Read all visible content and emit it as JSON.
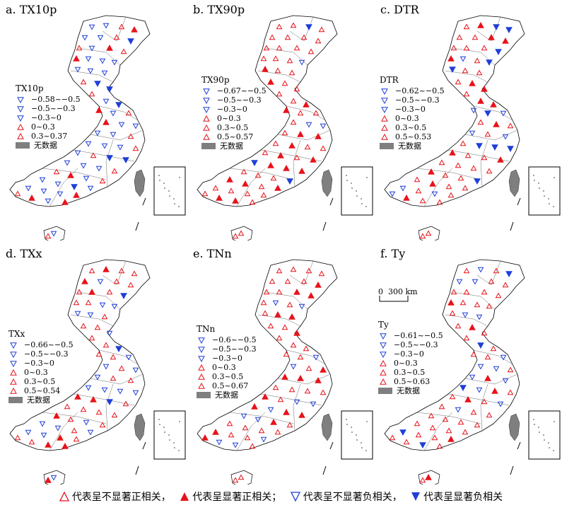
{
  "panels": [
    {
      "title": "a. TX10p",
      "legend_title": "TX10p",
      "ranges": [
        "−0.58~−0.5",
        "−0.5~−0.3",
        "−0.3~0",
        "0~0.3",
        "0.3~0.37"
      ]
    },
    {
      "title": "b. TX90p",
      "legend_title": "TX90p",
      "ranges": [
        "−0.67~−0.5",
        "−0.5~−0.3",
        "−0.3~0",
        "0~0.3",
        "0.3~0.5",
        "0.5~0.57"
      ]
    },
    {
      "title": "c. DTR",
      "legend_title": "DTR",
      "ranges": [
        "−0.62~−0.5",
        "−0.5~−0.3",
        "−0.3~0",
        "0~0.3",
        "0.3~0.5",
        "0.5~0.53"
      ]
    },
    {
      "title": "d. TXx",
      "legend_title": "TXx",
      "ranges": [
        "−0.66~−0.5",
        "−0.5~−0.3",
        "−0.3~0",
        "0~0.3",
        "0.3~0.5",
        "0.5~0.54"
      ]
    },
    {
      "title": "e. TNn",
      "legend_title": "TNn",
      "ranges": [
        "−0.6~−0.5",
        "−0.5~−0.3",
        "−0.3~0",
        "0~0.3",
        "0.3~0.5",
        "0.5~0.67"
      ]
    },
    {
      "title": "f. Ty",
      "legend_title": "Ty",
      "ranges": [
        "−0.61~−0.5",
        "−0.5~−0.3",
        "−0.3~0",
        "0~0.3",
        "0.3~0.5",
        "0.5~0.63"
      ]
    }
  ],
  "nodata_label": "无数据",
  "scale": {
    "zero": "0",
    "label": "300 km"
  },
  "footer": {
    "pos_insig": "代表呈不显著正相关，",
    "pos_sig": "代表呈显著正相关；",
    "neg_insig": "代表呈不显著负相关，",
    "neg_sig": "代表呈显著负相关"
  },
  "colors": {
    "positive": "#e8121a",
    "negative": "#1f3fd8",
    "nodata": "#7f7f7f"
  }
}
